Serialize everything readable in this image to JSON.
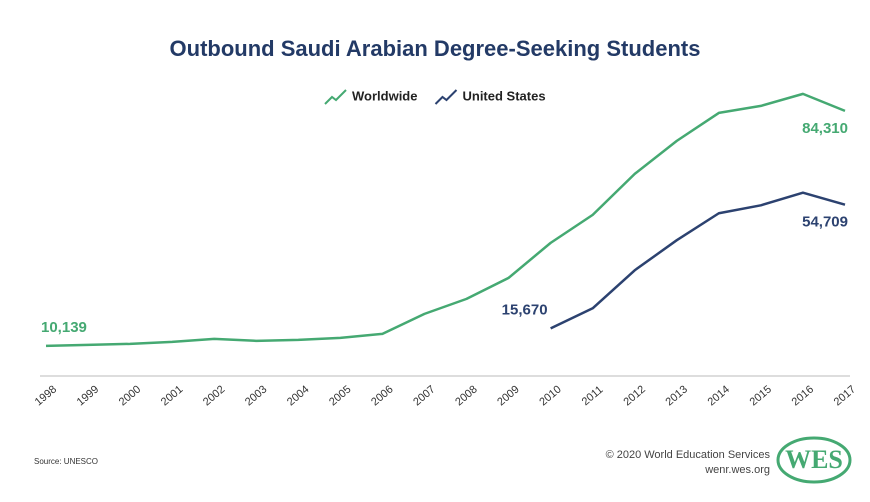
{
  "chart_data": {
    "type": "line",
    "title": "Outbound Saudi Arabian Degree-Seeking Students",
    "categories": [
      "1998",
      "1999",
      "2000",
      "2001",
      "2002",
      "2003",
      "2004",
      "2005",
      "2006",
      "2007",
      "2008",
      "2009",
      "2010",
      "2011",
      "2012",
      "2013",
      "2014",
      "2015",
      "2016",
      "2017"
    ],
    "series": [
      {
        "name": "Worldwide",
        "color": "#45a972",
        "values": [
          10139,
          10450,
          10770,
          11400,
          12350,
          11720,
          12030,
          12660,
          13930,
          20240,
          24970,
          31600,
          42650,
          51480,
          64420,
          74840,
          83670,
          85880,
          89670,
          84310
        ],
        "value_labels": [
          "10,139",
          null,
          null,
          null,
          null,
          null,
          null,
          null,
          null,
          null,
          null,
          null,
          null,
          null,
          null,
          null,
          null,
          null,
          null,
          "84,310"
        ]
      },
      {
        "name": "United States",
        "color": "#2c4270",
        "values": [
          null,
          null,
          null,
          null,
          null,
          null,
          null,
          null,
          null,
          null,
          null,
          null,
          15670,
          22000,
          34000,
          43500,
          52000,
          54500,
          58500,
          54709
        ],
        "value_labels": [
          null,
          null,
          null,
          null,
          null,
          null,
          null,
          null,
          null,
          null,
          null,
          null,
          "15,670",
          null,
          null,
          null,
          null,
          null,
          null,
          "54,709"
        ]
      }
    ],
    "ylim": [
      0,
      95000
    ],
    "legend": "top",
    "source": "Source: UNESCO",
    "credit": "© 2020 World Education Services",
    "site": "wenr.wes.org",
    "logo": "WES"
  }
}
